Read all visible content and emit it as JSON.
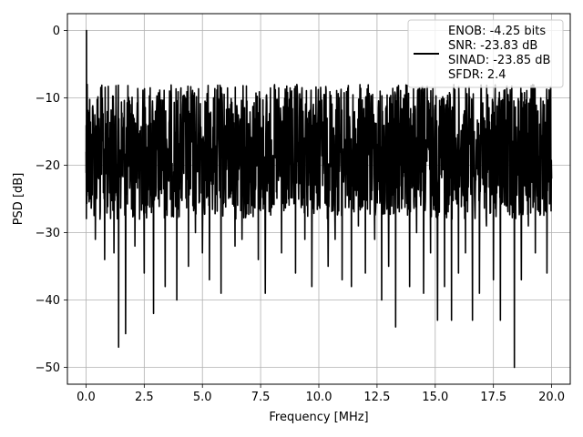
{
  "chart_data": {
    "type": "line",
    "xlabel": "Frequency [MHz]",
    "ylabel": "PSD [dB]",
    "xlim": [
      -0.8,
      20.8
    ],
    "ylim": [
      -52.5,
      2.5
    ],
    "xticks": [
      0.0,
      2.5,
      5.0,
      7.5,
      10.0,
      12.5,
      15.0,
      17.5,
      20.0
    ],
    "xtick_labels": [
      "0.0",
      "2.5",
      "5.0",
      "7.5",
      "10.0",
      "12.5",
      "15.0",
      "17.5",
      "20.0"
    ],
    "yticks": [
      0,
      -10,
      -20,
      -30,
      -40,
      -50
    ],
    "ytick_labels": [
      "0",
      "−10",
      "−20",
      "−30",
      "−40",
      "−50"
    ],
    "grid": true,
    "legend_position": "upper-right",
    "legend_entries": [
      "ENOB: -4.25 bits",
      "SNR: -23.83 dB",
      "SINAD: -23.85 dB",
      "SFDR: 2.4"
    ],
    "series": [
      {
        "color": "#000000",
        "x": [
          0.0,
          0.02,
          0.05,
          0.1,
          0.15,
          0.2,
          0.3,
          0.4,
          0.5,
          0.6,
          0.7,
          0.8,
          1.0,
          1.2,
          1.4,
          1.5,
          1.7,
          1.9,
          2.1,
          2.3,
          2.5,
          2.7,
          2.9,
          3.1,
          3.4,
          3.6,
          3.9,
          4.1,
          4.4,
          4.7,
          5.0,
          5.3,
          5.5,
          5.8,
          6.1,
          6.4,
          6.7,
          7.0,
          7.4,
          7.7,
          8.0,
          8.4,
          8.7,
          9.0,
          9.4,
          9.7,
          10.0,
          10.4,
          10.7,
          11.0,
          11.4,
          11.7,
          12.0,
          12.4,
          12.7,
          13.0,
          13.3,
          13.6,
          13.9,
          14.2,
          14.5,
          14.8,
          15.1,
          15.4,
          15.7,
          16.0,
          16.3,
          16.6,
          16.9,
          17.2,
          17.5,
          17.8,
          18.1,
          18.4,
          18.7,
          19.0,
          19.3,
          19.6,
          19.8,
          20.0
        ],
        "y": [
          -18,
          0,
          -8,
          -22,
          -16,
          -25,
          -12,
          -31,
          -14,
          -28,
          -10,
          -34,
          -19,
          -33,
          -47,
          -22,
          -45,
          -11,
          -32,
          -28,
          -36,
          -14,
          -42,
          -25,
          -38,
          -18,
          -40,
          -24,
          -35,
          -30,
          -33,
          -37,
          -21,
          -39,
          -19,
          -32,
          -31,
          -23,
          -34,
          -39,
          -21,
          -33,
          -25,
          -36,
          -31,
          -38,
          -26,
          -35,
          -31,
          -37,
          -38,
          -29,
          -36,
          -31,
          -40,
          -35,
          -44,
          -25,
          -38,
          -30,
          -39,
          -33,
          -43,
          -38,
          -43,
          -36,
          -33,
          -43,
          -39,
          -29,
          -37,
          -43,
          -26,
          -50,
          -37,
          -29,
          -33,
          -25,
          -36,
          -22
        ]
      }
    ]
  }
}
